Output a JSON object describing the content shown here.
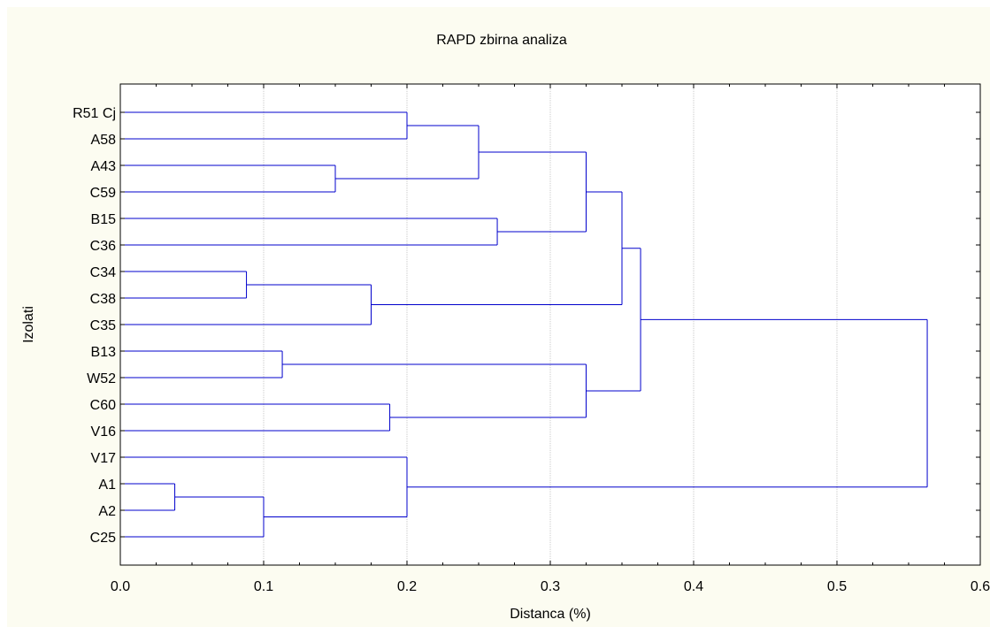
{
  "chart_data": {
    "type": "dendrogram",
    "title": "RAPD zbirna analiza",
    "xlabel": "Distanca (%)",
    "ylabel": "Izolati",
    "xlim": [
      0.0,
      0.6
    ],
    "x_ticks": [
      "0.0",
      "0.1",
      "0.2",
      "0.3",
      "0.4",
      "0.5",
      "0.6"
    ],
    "grid": true,
    "leaves": [
      "R51 Cj",
      "A58",
      "A43",
      "C59",
      "B15",
      "C36",
      "C34",
      "C38",
      "C35",
      "B13",
      "W52",
      "C60",
      "V16",
      "V17",
      "A1",
      "A2",
      "C25"
    ],
    "merges": [
      {
        "id": "m1",
        "a": "R51 Cj",
        "b": "A58",
        "distance": 0.2
      },
      {
        "id": "m2",
        "a": "A43",
        "b": "C59",
        "distance": 0.15
      },
      {
        "id": "m3",
        "a": "m1",
        "b": "m2",
        "distance": 0.25
      },
      {
        "id": "m4",
        "a": "B15",
        "b": "C36",
        "distance": 0.263
      },
      {
        "id": "m5",
        "a": "m3",
        "b": "m4",
        "distance": 0.325
      },
      {
        "id": "m6",
        "a": "C34",
        "b": "C38",
        "distance": 0.088
      },
      {
        "id": "m7",
        "a": "m6",
        "b": "C35",
        "distance": 0.175
      },
      {
        "id": "m8",
        "a": "m5",
        "b": "m7",
        "distance": 0.35
      },
      {
        "id": "m9",
        "a": "B13",
        "b": "W52",
        "distance": 0.113
      },
      {
        "id": "m10",
        "a": "C60",
        "b": "V16",
        "distance": 0.188
      },
      {
        "id": "m11",
        "a": "m9",
        "b": "m10",
        "distance": 0.325
      },
      {
        "id": "m12",
        "a": "m8",
        "b": "m11",
        "distance": 0.363
      },
      {
        "id": "m13",
        "a": "A1",
        "b": "A2",
        "distance": 0.038
      },
      {
        "id": "m14",
        "a": "m13",
        "b": "C25",
        "distance": 0.1
      },
      {
        "id": "m15",
        "a": "V17",
        "b": "m14",
        "distance": 0.2
      },
      {
        "id": "m16",
        "a": "m12",
        "b": "m15",
        "distance": 0.563
      }
    ],
    "colors": {
      "background": "#fcfcf1",
      "plot_area": "#ffffff",
      "tree": "#0000cc",
      "grid": "#c8c8c8",
      "axis": "#000000"
    }
  }
}
